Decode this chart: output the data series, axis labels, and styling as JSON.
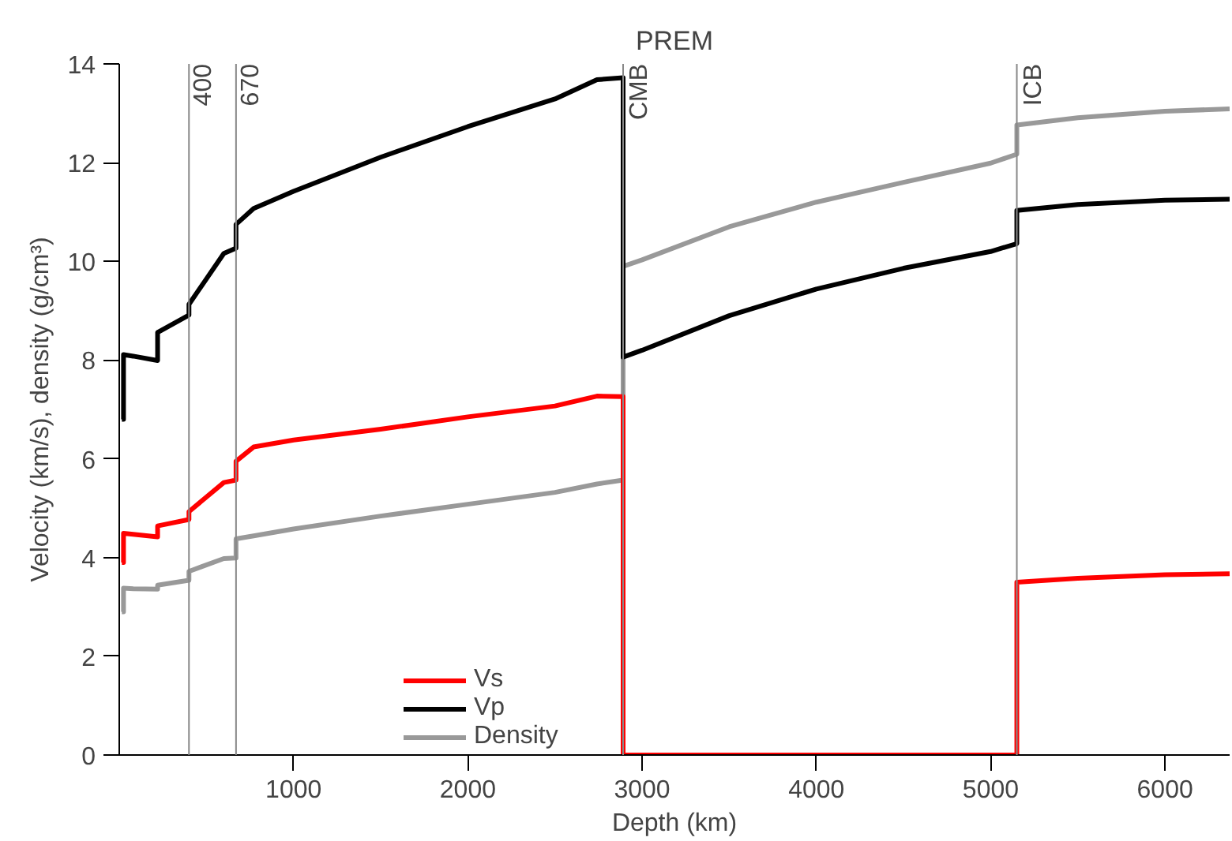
{
  "chart_data": {
    "type": "line",
    "title": "PREM",
    "xlabel": "Depth (km)",
    "ylabel": "Velocity (km/s), density (g/cm³)",
    "x": [
      15,
      24.4,
      24.4,
      80,
      220,
      220,
      400,
      400,
      600,
      670,
      670,
      771,
      1000,
      1500,
      2000,
      2500,
      2741,
      2891,
      2891,
      3000,
      3500,
      4000,
      4500,
      5000,
      5150,
      5150,
      5500,
      6000,
      6371
    ],
    "series": [
      {
        "name": "Vs",
        "color": "#ff0000",
        "values": [
          3.9,
          3.9,
          4.49,
          4.47,
          4.42,
          4.64,
          4.77,
          4.93,
          5.52,
          5.57,
          5.95,
          6.24,
          6.38,
          6.6,
          6.85,
          7.07,
          7.27,
          7.26,
          0,
          0,
          0,
          0,
          0,
          0,
          0,
          3.5,
          3.58,
          3.65,
          3.67
        ]
      },
      {
        "name": "Vp",
        "color": "#000000",
        "values": [
          6.8,
          6.8,
          8.11,
          8.08,
          7.99,
          8.56,
          8.91,
          9.13,
          10.16,
          10.27,
          10.75,
          11.07,
          11.42,
          12.11,
          12.73,
          13.29,
          13.68,
          13.72,
          8.06,
          8.2,
          8.9,
          9.44,
          9.86,
          10.2,
          10.36,
          11.03,
          11.15,
          11.24,
          11.26
        ]
      },
      {
        "name": "Density",
        "color": "#999999",
        "values": [
          2.9,
          2.9,
          3.38,
          3.37,
          3.36,
          3.44,
          3.54,
          3.72,
          3.98,
          3.99,
          4.38,
          4.44,
          4.58,
          4.84,
          5.08,
          5.32,
          5.49,
          5.57,
          9.9,
          10.03,
          10.7,
          11.2,
          11.6,
          11.99,
          12.17,
          12.76,
          12.91,
          13.04,
          13.09
        ]
      }
    ],
    "xlim": [
      0,
      6371
    ],
    "ylim": [
      0,
      14
    ],
    "xticks": [
      1000,
      2000,
      3000,
      4000,
      5000,
      6000
    ],
    "yticks": [
      0,
      2,
      4,
      6,
      8,
      10,
      12,
      14
    ],
    "grid": false,
    "legend": "bottom left",
    "marker": "none",
    "line_style": "solid",
    "ref_lines": [
      {
        "axis": "x",
        "value": 400,
        "label": "400",
        "color": "#888888"
      },
      {
        "axis": "x",
        "value": 670,
        "label": "670",
        "color": "#888888"
      },
      {
        "axis": "x",
        "value": 2891,
        "label": "CMB",
        "color": "#888888"
      },
      {
        "axis": "x",
        "value": 5150,
        "label": "ICB",
        "color": "#888888"
      }
    ]
  }
}
